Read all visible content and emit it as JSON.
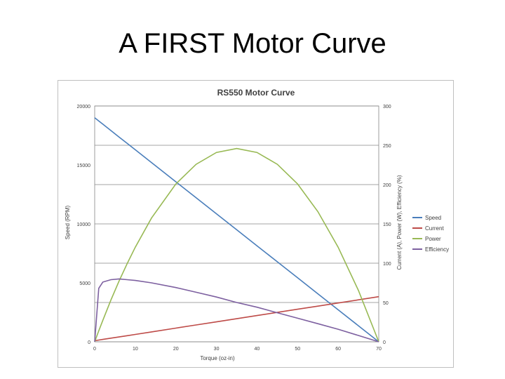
{
  "slide": {
    "title": "A FIRST Motor Curve"
  },
  "chart_data": {
    "type": "line",
    "title": "RS550 Motor Curve",
    "xlabel": "Torque (oz-in)",
    "ylabel": "Speed (RPM)",
    "y2label": "Current (A), Power (W), Efficiency (%)",
    "xlim": [
      0,
      70
    ],
    "ylim": [
      0,
      20000
    ],
    "y2lim": [
      0,
      300
    ],
    "x_ticks": [
      "0",
      "10",
      "20",
      "30",
      "40",
      "50",
      "60",
      "70"
    ],
    "y_ticks": [
      "0",
      "5000",
      "10000",
      "15000",
      "20000"
    ],
    "y2_ticks": [
      "0",
      "50",
      "100",
      "150",
      "200",
      "250",
      "300"
    ],
    "grid": true,
    "legend_position": "right",
    "x": [
      0,
      1,
      2,
      4,
      6,
      8,
      10,
      14,
      20,
      25,
      30,
      35,
      40,
      45,
      50,
      55,
      60,
      65,
      70
    ],
    "series": [
      {
        "name": "Speed",
        "axis": "left",
        "color": "#4a7ebb",
        "values": [
          19000,
          18729,
          18457,
          17914,
          17371,
          16829,
          16286,
          15200,
          13571,
          12214,
          10857,
          9500,
          8143,
          6786,
          5429,
          4071,
          2714,
          1357,
          0
        ]
      },
      {
        "name": "Current",
        "axis": "right",
        "color": "#be4b48",
        "values": [
          1.4,
          2.2,
          3.0,
          4.6,
          6.2,
          7.8,
          9.4,
          12.6,
          17.4,
          21.4,
          25.4,
          29.4,
          33.4,
          37.4,
          41.4,
          45.4,
          49.4,
          53.4,
          57.4
        ]
      },
      {
        "name": "Power",
        "axis": "right",
        "color": "#98b954",
        "values": [
          0,
          13.9,
          27.3,
          53.0,
          77.1,
          99.5,
          120.4,
          157.4,
          200.8,
          225.8,
          240.9,
          245.9,
          240.9,
          225.8,
          200.8,
          165.6,
          120.4,
          65.2,
          0
        ]
      },
      {
        "name": "Efficiency",
        "axis": "right",
        "color": "#7d60a0",
        "values": [
          0,
          68,
          76,
          79,
          80,
          79,
          78,
          75,
          69,
          63,
          57,
          50,
          44,
          37,
          30,
          23,
          16,
          8,
          0
        ]
      }
    ]
  }
}
